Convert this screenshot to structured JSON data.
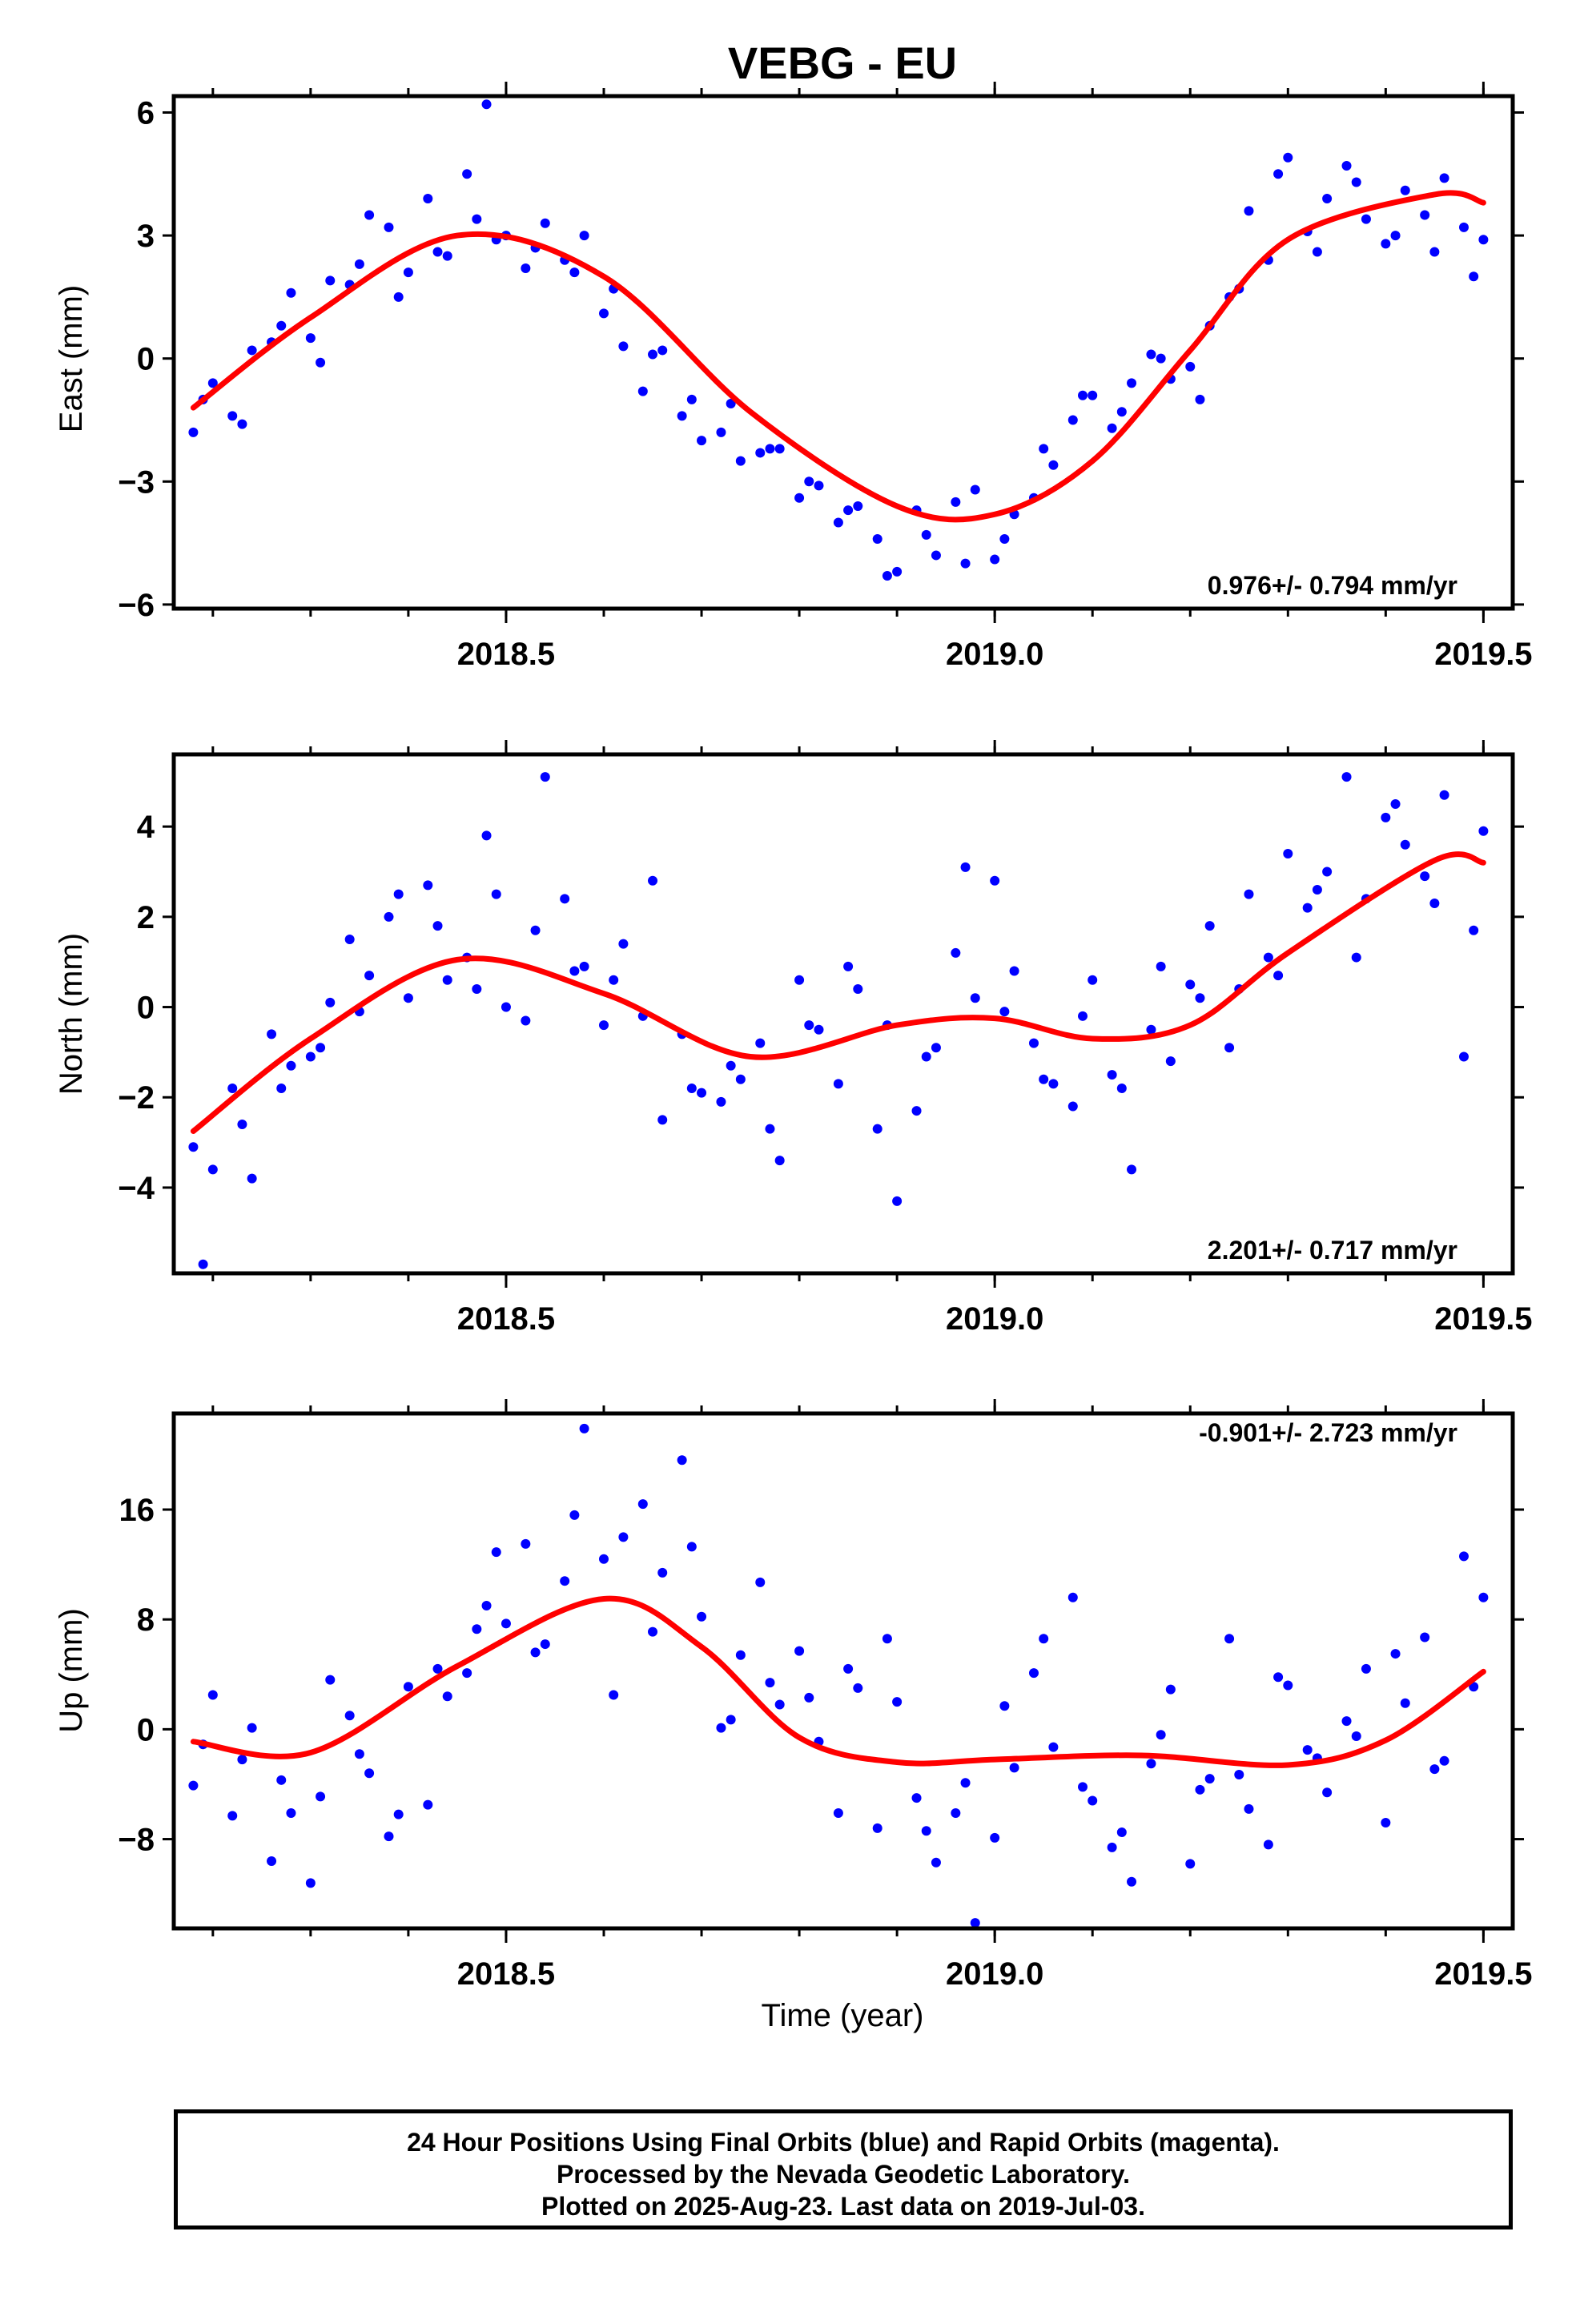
{
  "title": "VEBG - EU",
  "xlabel": "Time (year)",
  "footer": {
    "line1": "24 Hour Positions Using Final Orbits (blue) and Rapid Orbits (magenta).",
    "line2": "Processed by the Nevada Geodetic Laboratory.",
    "line3": "Plotted on 2025-Aug-23. Last data on 2019-Jul-03."
  },
  "colors": {
    "points": "#0000ff",
    "fit": "#ff0000",
    "axes": "#000000"
  },
  "chart_data": [
    {
      "type": "scatter",
      "ylabel": "East (mm)",
      "rate": "0.976+/- 0.794 mm/yr",
      "xlim": [
        2018.16,
        2019.53
      ],
      "ylim": [
        -6.1,
        6.4
      ],
      "yticks": [
        {
          "v": 6,
          "label": "6"
        },
        {
          "v": 3,
          "label": "3"
        },
        {
          "v": 0,
          "label": "0"
        },
        {
          "v": -3,
          "label": "−3"
        },
        {
          "v": -6,
          "label": "−6"
        }
      ],
      "xticks": [
        {
          "v": 2018.5,
          "label": "2018.5"
        },
        {
          "v": 2019.0,
          "label": "2019.0"
        },
        {
          "v": 2019.5,
          "label": "2019.5"
        }
      ],
      "fit": {
        "x": [
          2018.18,
          2018.3,
          2018.45,
          2018.6,
          2018.75,
          2018.9,
          2019.0,
          2019.1,
          2019.2,
          2019.3,
          2019.45,
          2019.5
        ],
        "y": [
          -1.2,
          1.0,
          3.0,
          2.0,
          -1.3,
          -3.6,
          -3.8,
          -2.5,
          0.2,
          2.9,
          4.0,
          3.8
        ]
      },
      "points": {
        "x": [
          2018.18,
          2018.2,
          2018.22,
          2018.24,
          2018.26,
          2018.28,
          2018.3,
          2018.32,
          2018.34,
          2018.36,
          2018.38,
          2018.4,
          2018.42,
          2018.44,
          2018.46,
          2018.48,
          2018.5,
          2018.52,
          2018.54,
          2018.56,
          2018.58,
          2018.6,
          2018.62,
          2018.64,
          2018.66,
          2018.68,
          2018.7,
          2018.72,
          2018.74,
          2018.76,
          2018.78,
          2018.8,
          2018.82,
          2018.84,
          2018.86,
          2018.88,
          2018.9,
          2018.92,
          2018.94,
          2018.96,
          2018.98,
          2019.0,
          2019.02,
          2019.04,
          2019.06,
          2019.08,
          2019.1,
          2019.12,
          2019.14,
          2019.16,
          2019.18,
          2019.2,
          2019.22,
          2019.24,
          2019.26,
          2019.28,
          2019.3,
          2019.32,
          2019.34,
          2019.36,
          2019.38,
          2019.4,
          2019.42,
          2019.44,
          2019.46,
          2019.48,
          2019.5,
          2018.19,
          2018.23,
          2018.27,
          2018.31,
          2018.35,
          2018.39,
          2018.43,
          2018.47,
          2018.49,
          2018.53,
          2018.57,
          2018.61,
          2018.65,
          2018.69,
          2018.73,
          2018.77,
          2018.81,
          2018.85,
          2018.89,
          2018.93,
          2018.97,
          2019.01,
          2019.05,
          2019.09,
          2019.13,
          2019.17,
          2019.21,
          2019.25,
          2019.29,
          2019.33,
          2019.37,
          2019.41,
          2019.45,
          2019.49
        ],
        "y": [
          -1.8,
          -0.6,
          -1.4,
          0.2,
          0.4,
          1.6,
          0.5,
          1.9,
          1.8,
          3.5,
          3.2,
          2.1,
          3.9,
          2.5,
          4.5,
          6.2,
          3.0,
          2.2,
          3.3,
          2.4,
          3.0,
          1.1,
          0.3,
          -0.8,
          0.2,
          -1.4,
          -2.0,
          -1.8,
          -2.5,
          -2.3,
          -2.2,
          -3.4,
          -3.1,
          -4.0,
          -3.6,
          -4.4,
          -5.2,
          -3.7,
          -4.8,
          -3.5,
          -3.2,
          -4.9,
          -3.8,
          -3.4,
          -2.6,
          -1.5,
          -0.9,
          -1.7,
          -0.6,
          0.1,
          -0.5,
          -0.2,
          0.8,
          1.5,
          3.6,
          2.4,
          4.9,
          3.1,
          3.9,
          4.7,
          3.4,
          2.8,
          4.1,
          3.5,
          4.4,
          3.2,
          2.9,
          -1.0,
          -1.6,
          0.8,
          -0.1,
          2.3,
          1.5,
          2.6,
          3.4,
          2.9,
          2.7,
          2.1,
          1.7,
          0.1,
          -1.0,
          -1.1,
          -2.2,
          -3.0,
          -3.7,
          -5.3,
          -4.3,
          -5.0,
          -4.4,
          -2.2,
          -0.9,
          -1.3,
          0.0,
          -1.0,
          1.7,
          4.5,
          2.6,
          4.3,
          3.0,
          2.6,
          2.0
        ]
      }
    },
    {
      "type": "scatter",
      "ylabel": "North (mm)",
      "rate": "2.201+/- 0.717 mm/yr",
      "xlim": [
        2018.16,
        2019.53
      ],
      "ylim": [
        -5.9,
        5.6
      ],
      "yticks": [
        {
          "v": 4,
          "label": "4"
        },
        {
          "v": 2,
          "label": "2"
        },
        {
          "v": 0,
          "label": "0"
        },
        {
          "v": -2,
          "label": "−2"
        },
        {
          "v": -4,
          "label": "−4"
        }
      ],
      "xticks": [
        {
          "v": 2018.5,
          "label": "2018.5"
        },
        {
          "v": 2019.0,
          "label": "2019.0"
        },
        {
          "v": 2019.5,
          "label": "2019.5"
        }
      ],
      "fit": {
        "x": [
          2018.18,
          2018.3,
          2018.45,
          2018.6,
          2018.75,
          2018.9,
          2019.0,
          2019.1,
          2019.2,
          2019.3,
          2019.45,
          2019.5
        ],
        "y": [
          -2.75,
          -0.7,
          1.05,
          0.3,
          -1.1,
          -0.4,
          -0.25,
          -0.7,
          -0.4,
          1.2,
          3.25,
          3.2
        ]
      },
      "points": {
        "x": [
          2018.18,
          2018.2,
          2018.22,
          2018.24,
          2018.26,
          2018.28,
          2018.3,
          2018.32,
          2018.34,
          2018.36,
          2018.38,
          2018.4,
          2018.42,
          2018.44,
          2018.46,
          2018.48,
          2018.5,
          2018.52,
          2018.54,
          2018.56,
          2018.58,
          2018.6,
          2018.62,
          2018.64,
          2018.66,
          2018.68,
          2018.7,
          2018.72,
          2018.74,
          2018.76,
          2018.78,
          2018.8,
          2018.82,
          2018.84,
          2018.86,
          2018.88,
          2018.9,
          2018.92,
          2018.94,
          2018.96,
          2018.98,
          2019.0,
          2019.02,
          2019.04,
          2019.06,
          2019.08,
          2019.1,
          2019.12,
          2019.14,
          2019.16,
          2019.18,
          2019.2,
          2019.22,
          2019.24,
          2019.26,
          2019.28,
          2019.3,
          2019.32,
          2019.34,
          2019.36,
          2019.38,
          2019.4,
          2019.42,
          2019.44,
          2019.46,
          2019.48,
          2019.5,
          2018.19,
          2018.23,
          2018.27,
          2018.31,
          2018.35,
          2018.39,
          2018.43,
          2018.47,
          2018.49,
          2018.53,
          2018.57,
          2018.61,
          2018.65,
          2018.69,
          2018.73,
          2018.77,
          2018.81,
          2018.85,
          2018.89,
          2018.93,
          2018.97,
          2019.01,
          2019.05,
          2019.09,
          2019.13,
          2019.17,
          2019.21,
          2019.25,
          2019.29,
          2019.33,
          2019.37,
          2019.41,
          2019.45,
          2019.49
        ],
        "y": [
          -3.1,
          -3.6,
          -1.8,
          -3.8,
          -0.6,
          -1.3,
          -1.1,
          0.1,
          1.5,
          0.7,
          2.0,
          0.2,
          2.7,
          0.6,
          1.1,
          3.8,
          0.0,
          -0.3,
          5.1,
          2.4,
          0.9,
          -0.4,
          1.4,
          -0.2,
          -2.5,
          -0.6,
          -1.9,
          -2.1,
          -1.6,
          -0.8,
          -3.4,
          0.6,
          -0.5,
          -1.7,
          0.4,
          -2.7,
          -4.3,
          -2.3,
          -0.9,
          1.2,
          0.2,
          2.8,
          0.8,
          -0.8,
          -1.7,
          -2.2,
          0.6,
          -1.5,
          -3.6,
          -0.5,
          -1.2,
          0.5,
          1.8,
          -0.9,
          2.5,
          1.1,
          3.4,
          2.2,
          3.0,
          5.1,
          2.4,
          4.2,
          3.6,
          2.9,
          4.7,
          -1.1,
          3.9,
          -5.7,
          -2.6,
          -1.8,
          -0.9,
          -0.1,
          2.5,
          1.8,
          0.4,
          2.5,
          1.7,
          0.8,
          0.6,
          2.8,
          -1.8,
          -1.3,
          -2.7,
          -0.4,
          0.9,
          -0.4,
          -1.1,
          3.1,
          -0.1,
          -1.6,
          -0.2,
          -1.8,
          0.9,
          0.2,
          0.4,
          0.7,
          2.6,
          1.1,
          4.5,
          2.3,
          1.7
        ]
      }
    },
    {
      "type": "scatter",
      "ylabel": "Up (mm)",
      "rate": "-0.901+/- 2.723 mm/yr",
      "xlim": [
        2018.16,
        2019.53
      ],
      "ylim": [
        -14.5,
        23.0
      ],
      "yticks": [
        {
          "v": 16,
          "label": "16"
        },
        {
          "v": 8,
          "label": "8"
        },
        {
          "v": 0,
          "label": "0"
        },
        {
          "v": -8,
          "label": "−8"
        }
      ],
      "xticks": [
        {
          "v": 2018.5,
          "label": "2018.5"
        },
        {
          "v": 2019.0,
          "label": "2019.0"
        },
        {
          "v": 2019.5,
          "label": "2019.5"
        }
      ],
      "fit": {
        "x": [
          2018.18,
          2018.3,
          2018.45,
          2018.6,
          2018.7,
          2018.8,
          2018.9,
          2019.0,
          2019.15,
          2019.3,
          2019.4,
          2019.5
        ],
        "y": [
          -0.9,
          -1.7,
          4.6,
          9.5,
          6.0,
          -0.6,
          -2.4,
          -2.2,
          -1.9,
          -2.6,
          -0.8,
          4.2
        ]
      },
      "points": {
        "x": [
          2018.18,
          2018.2,
          2018.22,
          2018.24,
          2018.26,
          2018.28,
          2018.3,
          2018.32,
          2018.34,
          2018.36,
          2018.38,
          2018.4,
          2018.42,
          2018.44,
          2018.46,
          2018.48,
          2018.5,
          2018.52,
          2018.54,
          2018.56,
          2018.58,
          2018.6,
          2018.62,
          2018.64,
          2018.66,
          2018.68,
          2018.7,
          2018.72,
          2018.74,
          2018.76,
          2018.78,
          2018.8,
          2018.82,
          2018.84,
          2018.86,
          2018.88,
          2018.9,
          2018.92,
          2018.94,
          2018.96,
          2018.98,
          2019.0,
          2019.02,
          2019.04,
          2019.06,
          2019.08,
          2019.1,
          2019.12,
          2019.14,
          2019.16,
          2019.18,
          2019.2,
          2019.22,
          2019.24,
          2019.26,
          2019.28,
          2019.3,
          2019.32,
          2019.34,
          2019.36,
          2019.38,
          2019.4,
          2019.42,
          2019.44,
          2019.46,
          2019.48,
          2019.5,
          2018.19,
          2018.23,
          2018.27,
          2018.31,
          2018.35,
          2018.39,
          2018.43,
          2018.47,
          2018.49,
          2018.53,
          2018.57,
          2018.61,
          2018.65,
          2018.69,
          2018.73,
          2018.77,
          2018.81,
          2018.85,
          2018.89,
          2018.93,
          2018.97,
          2019.01,
          2019.05,
          2019.09,
          2019.13,
          2019.17,
          2019.21,
          2019.25,
          2019.29,
          2019.33,
          2019.37,
          2019.41,
          2019.45,
          2019.49
        ],
        "y": [
          -4.1,
          2.5,
          -6.3,
          0.1,
          -9.6,
          -6.1,
          -11.2,
          3.6,
          1.0,
          -3.2,
          -7.8,
          3.1,
          -5.5,
          2.4,
          4.1,
          9.0,
          7.7,
          13.5,
          6.2,
          10.8,
          21.9,
          12.4,
          14.0,
          16.4,
          11.4,
          19.6,
          8.2,
          0.1,
          5.4,
          10.7,
          1.8,
          5.7,
          -0.9,
          -6.1,
          3.0,
          -7.2,
          2.0,
          -5.0,
          -9.7,
          -6.1,
          -14.1,
          -7.9,
          -2.8,
          4.1,
          -1.3,
          9.6,
          -5.2,
          -8.6,
          -11.1,
          -2.5,
          2.9,
          -9.8,
          -3.6,
          6.6,
          -5.8,
          -8.4,
          3.2,
          -1.5,
          -4.6,
          0.6,
          4.4,
          -6.8,
          1.9,
          6.7,
          -2.3,
          12.6,
          9.6,
          -1.1,
          -2.2,
          -3.7,
          -4.9,
          -1.8,
          -6.2,
          4.4,
          7.3,
          12.9,
          5.6,
          15.6,
          2.5,
          7.1,
          13.3,
          0.7,
          3.4,
          2.3,
          4.4,
          6.6,
          -7.4,
          -3.9,
          1.7,
          6.6,
          -4.2,
          -7.5,
          -0.4,
          -4.4,
          -3.3,
          3.8,
          -2.1,
          -0.5,
          5.5,
          -2.9,
          3.1
        ]
      }
    }
  ]
}
